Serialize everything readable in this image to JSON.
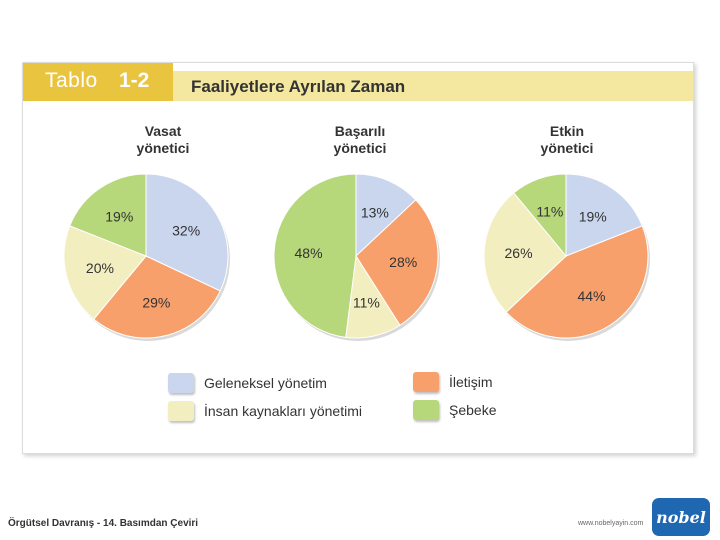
{
  "header": {
    "tab_word": "Tablo",
    "tab_number": "1-2",
    "title": "Faaliyetlere Ayrılan Zaman"
  },
  "colors": {
    "traditional": "#c9d6ee",
    "communication": "#f7a06c",
    "hr": "#f3eec0",
    "networking": "#b7d77b"
  },
  "chart_data": [
    {
      "type": "pie",
      "title_line1": "Vasat",
      "title_line2": "yönetici",
      "slices": [
        {
          "label": "Geleneksel yönetim",
          "value": 32,
          "text": "32%",
          "color": "#c9d6ee"
        },
        {
          "label": "İletişim",
          "value": 29,
          "text": "29%",
          "color": "#f7a06c"
        },
        {
          "label": "İnsan kaynakları yönetimi",
          "value": 20,
          "text": "20%",
          "color": "#f3eec0"
        },
        {
          "label": "Şebeke",
          "value": 19,
          "text": "19%",
          "color": "#b7d77b"
        }
      ]
    },
    {
      "type": "pie",
      "title_line1": "Başarılı",
      "title_line2": "yönetici",
      "slices": [
        {
          "label": "Geleneksel yönetim",
          "value": 13,
          "text": "13%",
          "color": "#c9d6ee"
        },
        {
          "label": "İletişim",
          "value": 28,
          "text": "28%",
          "color": "#f7a06c"
        },
        {
          "label": "İnsan kaynakları yönetimi",
          "value": 11,
          "text": "11%",
          "color": "#f3eec0"
        },
        {
          "label": "Şebeke",
          "value": 48,
          "text": "48%",
          "color": "#b7d77b"
        }
      ]
    },
    {
      "type": "pie",
      "title_line1": "Etkin",
      "title_line2": "yönetici",
      "slices": [
        {
          "label": "Geleneksel yönetim",
          "value": 19,
          "text": "19%",
          "color": "#c9d6ee"
        },
        {
          "label": "İletişim",
          "value": 44,
          "text": "44%",
          "color": "#f7a06c"
        },
        {
          "label": "İnsan kaynakları yönetimi",
          "value": 26,
          "text": "26%",
          "color": "#f3eec0"
        },
        {
          "label": "Şebeke",
          "value": 11,
          "text": "11%",
          "color": "#b7d77b"
        }
      ]
    }
  ],
  "legend": [
    {
      "label": "Geleneksel yönetim",
      "color": "#c9d6ee"
    },
    {
      "label": "İletişim",
      "color": "#f7a06c"
    },
    {
      "label": "İnsan kaynakları yönetimi",
      "color": "#f3eec0"
    },
    {
      "label": "Şebeke",
      "color": "#b7d77b"
    }
  ],
  "footer": {
    "book": "Örgütsel Davranış - 14. Basımdan Çeviri",
    "url": "www.nobelyayin.com",
    "logo_text": "nobel"
  }
}
